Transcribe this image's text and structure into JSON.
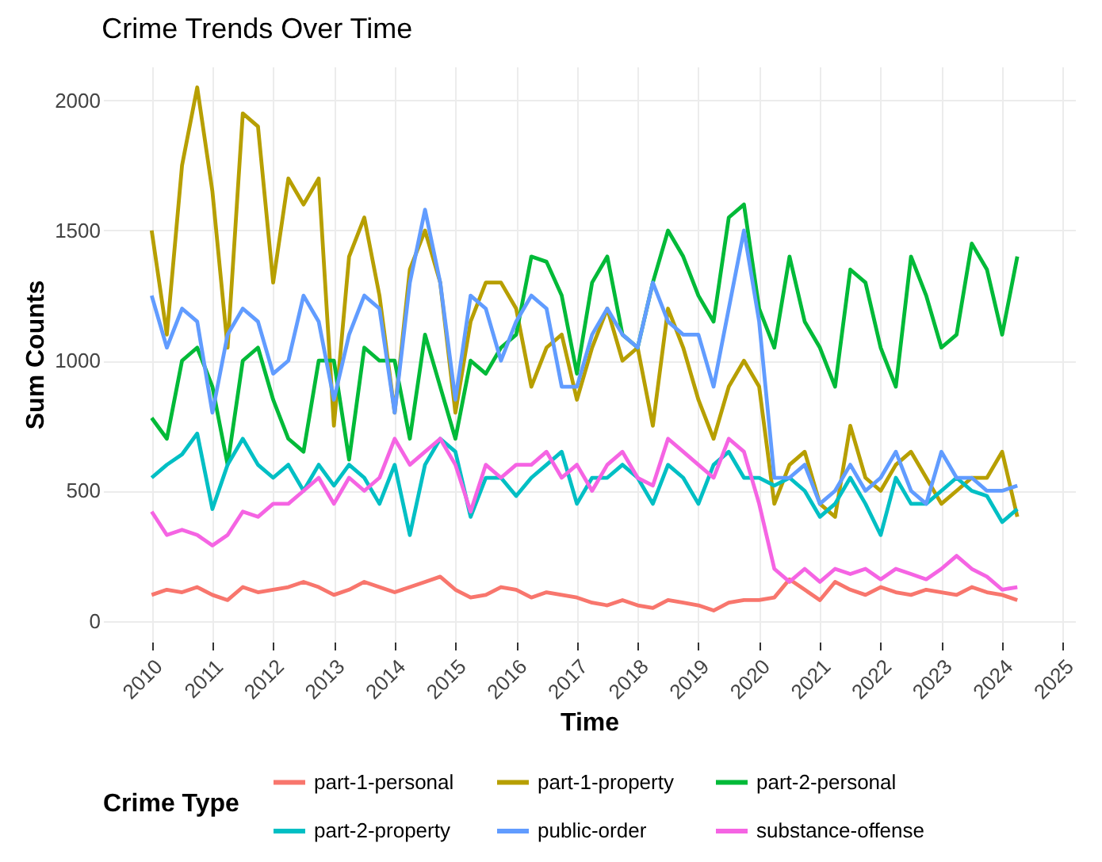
{
  "chart_data": {
    "type": "line",
    "title": "Crime Trends Over Time",
    "xlabel": "Time",
    "ylabel": "Sum Counts",
    "legend_title": "Crime Type",
    "x": [
      2010,
      2010.25,
      2010.5,
      2010.75,
      2011,
      2011.25,
      2011.5,
      2011.75,
      2012,
      2012.25,
      2012.5,
      2012.75,
      2013,
      2013.25,
      2013.5,
      2013.75,
      2014,
      2014.25,
      2014.5,
      2014.75,
      2015,
      2015.25,
      2015.5,
      2015.75,
      2016,
      2016.25,
      2016.5,
      2016.75,
      2017,
      2017.25,
      2017.5,
      2017.75,
      2018,
      2018.25,
      2018.5,
      2018.75,
      2019,
      2019.25,
      2019.5,
      2019.75,
      2020,
      2020.25,
      2020.5,
      2020.75,
      2021,
      2021.25,
      2021.5,
      2021.75,
      2022,
      2022.25,
      2022.5,
      2022.75,
      2023,
      2023.25,
      2023.5,
      2023.75,
      2024,
      2024.25
    ],
    "series": [
      {
        "name": "part-1-personal",
        "color": "#f8766d",
        "values": [
          100,
          120,
          110,
          130,
          100,
          80,
          130,
          110,
          120,
          130,
          150,
          130,
          100,
          120,
          150,
          130,
          110,
          130,
          150,
          170,
          120,
          90,
          100,
          130,
          120,
          90,
          110,
          100,
          90,
          70,
          60,
          80,
          60,
          50,
          80,
          70,
          60,
          40,
          70,
          80,
          80,
          90,
          160,
          120,
          80,
          150,
          120,
          100,
          130,
          110,
          100,
          120,
          110,
          100,
          130,
          110,
          100,
          80
        ]
      },
      {
        "name": "part-1-property",
        "color": "#b79f00",
        "values": [
          1500,
          1100,
          1750,
          2050,
          1650,
          1050,
          1950,
          1900,
          1300,
          1700,
          1600,
          1700,
          750,
          1400,
          1550,
          1250,
          800,
          1350,
          1500,
          1300,
          800,
          1150,
          1300,
          1300,
          1200,
          900,
          1050,
          1100,
          850,
          1050,
          1200,
          1000,
          1050,
          750,
          1200,
          1050,
          850,
          700,
          900,
          1000,
          900,
          450,
          600,
          650,
          450,
          400,
          750,
          550,
          500,
          600,
          650,
          550,
          450,
          500,
          550,
          550,
          650,
          400
        ]
      },
      {
        "name": "part-2-personal",
        "color": "#00ba38",
        "values": [
          780,
          700,
          1000,
          1050,
          900,
          600,
          1000,
          1050,
          850,
          700,
          650,
          1000,
          1000,
          620,
          1050,
          1000,
          1000,
          700,
          1100,
          900,
          700,
          1000,
          950,
          1050,
          1100,
          1400,
          1380,
          1250,
          950,
          1300,
          1400,
          1100,
          1050,
          1300,
          1500,
          1400,
          1250,
          1150,
          1550,
          1600,
          1200,
          1050,
          1400,
          1150,
          1050,
          900,
          1350,
          1300,
          1050,
          900,
          1400,
          1250,
          1050,
          1100,
          1450,
          1350,
          1100,
          1400
        ]
      },
      {
        "name": "part-2-property",
        "color": "#00bfc4",
        "values": [
          550,
          600,
          640,
          720,
          430,
          600,
          700,
          600,
          550,
          600,
          500,
          600,
          520,
          600,
          550,
          450,
          600,
          330,
          600,
          700,
          650,
          400,
          550,
          550,
          480,
          550,
          600,
          650,
          450,
          550,
          550,
          600,
          550,
          450,
          600,
          550,
          450,
          600,
          650,
          550,
          550,
          520,
          550,
          500,
          400,
          450,
          550,
          450,
          330,
          550,
          450,
          450,
          500,
          550,
          500,
          480,
          380,
          430
        ]
      },
      {
        "name": "public-order",
        "color": "#619cff",
        "values": [
          1250,
          1050,
          1200,
          1150,
          800,
          1100,
          1200,
          1150,
          950,
          1000,
          1250,
          1150,
          850,
          1100,
          1250,
          1200,
          800,
          1300,
          1580,
          1300,
          850,
          1250,
          1200,
          1000,
          1150,
          1250,
          1200,
          900,
          900,
          1100,
          1200,
          1100,
          1050,
          1300,
          1150,
          1100,
          1100,
          900,
          1200,
          1500,
          1150,
          550,
          550,
          600,
          450,
          500,
          600,
          500,
          550,
          650,
          500,
          450,
          650,
          550,
          550,
          500,
          500,
          520
        ]
      },
      {
        "name": "substance-offense",
        "color": "#f564e3",
        "values": [
          420,
          330,
          350,
          330,
          290,
          330,
          420,
          400,
          450,
          450,
          500,
          550,
          450,
          550,
          500,
          550,
          700,
          600,
          650,
          700,
          600,
          420,
          600,
          550,
          600,
          600,
          650,
          550,
          600,
          500,
          600,
          650,
          550,
          520,
          700,
          650,
          600,
          550,
          700,
          650,
          450,
          200,
          150,
          200,
          150,
          200,
          180,
          200,
          160,
          200,
          180,
          160,
          200,
          250,
          200,
          170,
          120,
          130
        ]
      }
    ],
    "xlim": [
      2009.2,
      2025.2
    ],
    "ylim": [
      -80,
      2130
    ],
    "xticks": [
      2010,
      2011,
      2012,
      2013,
      2014,
      2015,
      2016,
      2017,
      2018,
      2019,
      2020,
      2021,
      2022,
      2023,
      2024,
      2025
    ],
    "yticks": [
      0,
      500,
      1000,
      1500,
      2000
    ],
    "grid": true,
    "legend": "bottom"
  }
}
